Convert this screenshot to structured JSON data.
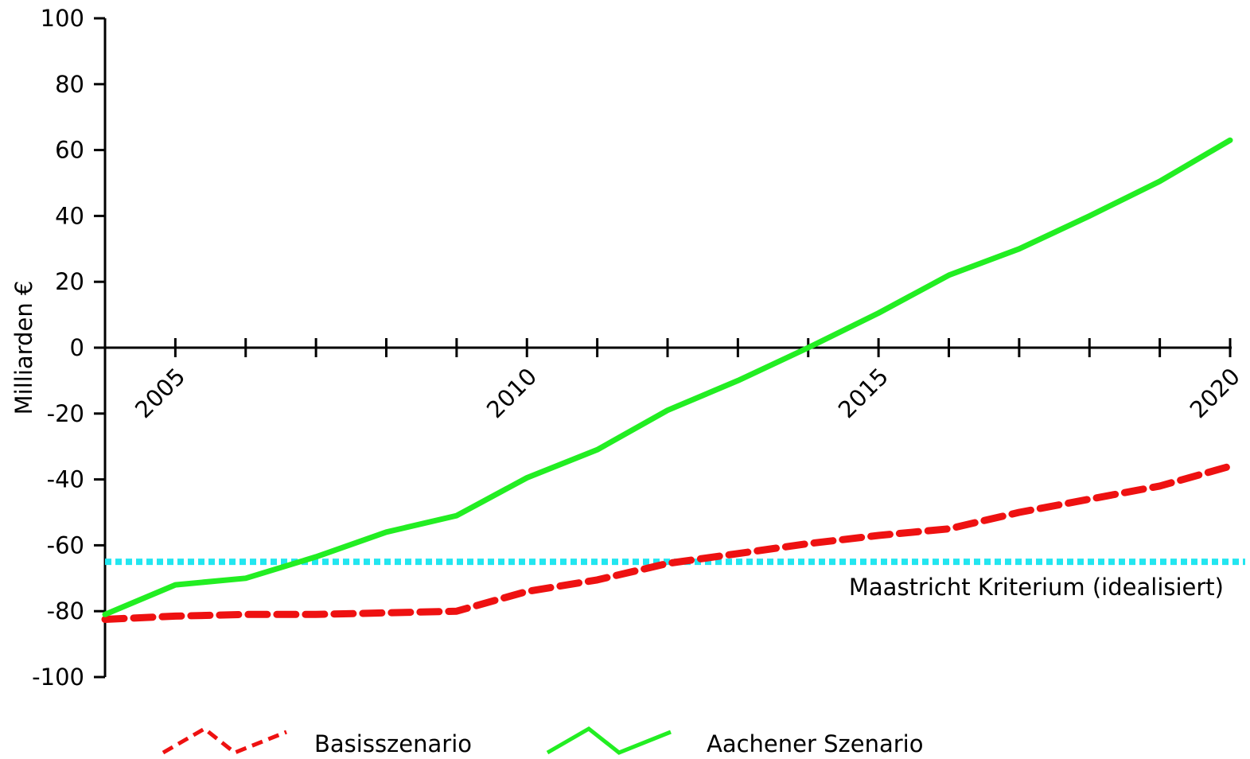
{
  "chart_data": {
    "type": "line",
    "title": "",
    "xlabel": "",
    "ylabel": "Milliarden €",
    "ylim": [
      -100,
      100
    ],
    "yticks": [
      -100,
      -80,
      -60,
      -40,
      -20,
      0,
      20,
      40,
      60,
      80,
      100
    ],
    "xlim": [
      2004,
      2020
    ],
    "xtick_labels": [
      2005,
      2010,
      2015,
      2020
    ],
    "x": [
      2004,
      2005,
      2006,
      2007,
      2008,
      2009,
      2010,
      2011,
      2012,
      2013,
      2014,
      2015,
      2016,
      2017,
      2018,
      2019,
      2020
    ],
    "series": [
      {
        "name": "Basisszenario",
        "color": "#ee1111",
        "style": "dashed",
        "values": [
          -82.5,
          -81.5,
          -81,
          -81,
          -80.5,
          -80,
          -74,
          -70.5,
          -65.5,
          -62.5,
          -59.5,
          -57,
          -55,
          -50,
          -46,
          -42,
          -36
        ]
      },
      {
        "name": "Aachener Szenario",
        "color": "#22ee22",
        "style": "solid",
        "values": [
          -81,
          -72,
          -70,
          -63.5,
          -56,
          -51,
          -39.5,
          -31,
          -19,
          -10,
          0,
          10.5,
          22,
          30,
          40,
          50.5,
          63
        ]
      }
    ],
    "reference_lines": [
      {
        "label": "Maastricht Kriterium (idealisiert)",
        "y": -65,
        "color": "#22e6f0",
        "style": "dotted"
      }
    ],
    "grid": false,
    "legend_position": "bottom"
  }
}
